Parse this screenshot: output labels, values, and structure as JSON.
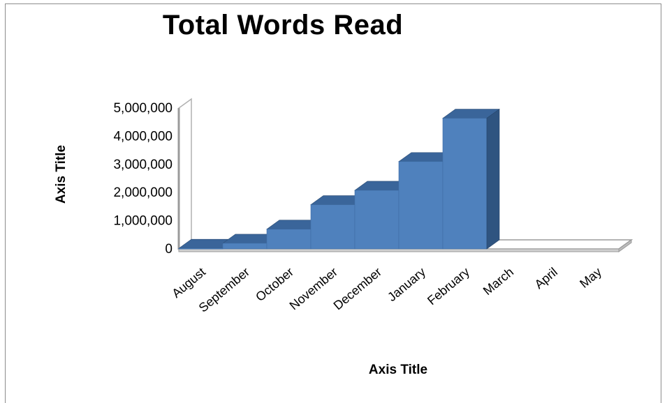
{
  "chart_data": {
    "type": "bar",
    "title": "Total Words Read",
    "xlabel": "Axis Title",
    "ylabel": "Axis Title",
    "categories": [
      "August",
      "September",
      "October",
      "November",
      "December",
      "January",
      "February",
      "March",
      "April",
      "May"
    ],
    "values": [
      20000,
      200000,
      700000,
      1570000,
      2080000,
      3100000,
      4640000,
      0,
      0,
      0
    ],
    "ylim": [
      0,
      5000000
    ],
    "yticks": [
      0,
      1000000,
      2000000,
      3000000,
      4000000,
      5000000
    ],
    "ytick_labels": [
      "0",
      "1,000,000",
      "2,000,000",
      "3,000,000",
      "4,000,000",
      "5,000,000"
    ],
    "grid": false,
    "legend": "none",
    "style": "3d-column-stepped",
    "colors": {
      "front": "#4f81bd",
      "top": "#3a659a",
      "side": "#2f5480"
    }
  }
}
